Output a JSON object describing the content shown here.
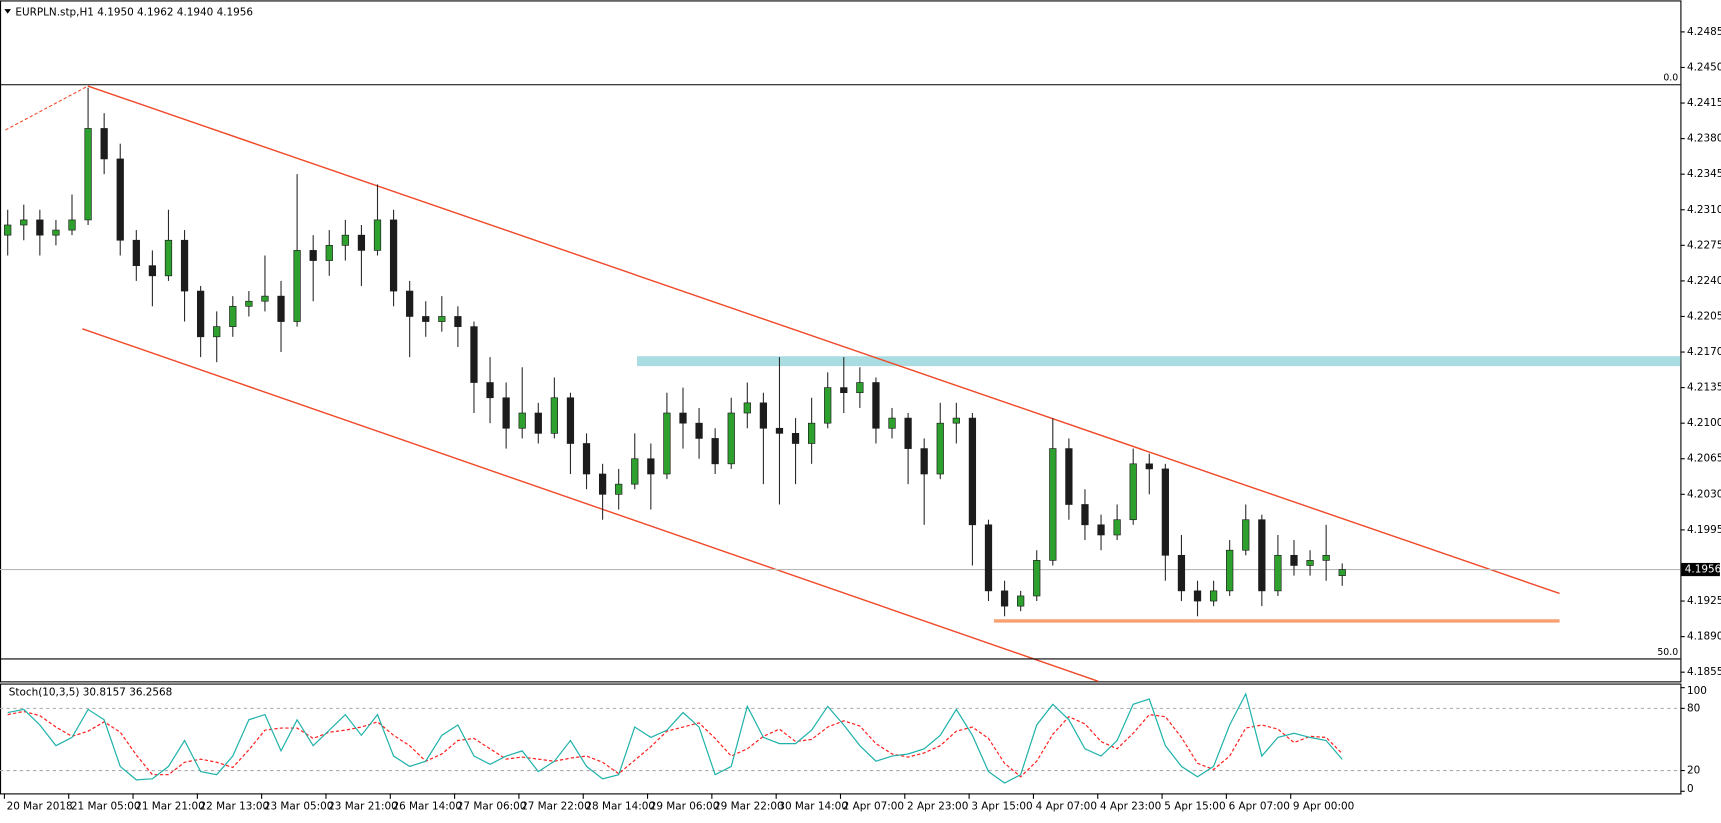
{
  "chart_data": [
    {
      "type": "candlestick",
      "title": "EURPLN.stp,H1  4.1950 4.1962 4.1940 4.1956",
      "categories": [
        "20 Mar 2018",
        null,
        null,
        null,
        "21 Mar 05:00",
        null,
        null,
        null,
        "21 Mar 21:00",
        null,
        null,
        null,
        "22 Mar 13:00",
        null,
        null,
        null,
        "23 Mar 05:00",
        null,
        null,
        null,
        "23 Mar 21:00",
        null,
        null,
        null,
        "26 Mar 14:00",
        null,
        null,
        null,
        "27 Mar 06:00",
        null,
        null,
        null,
        "27 Mar 22:00",
        null,
        null,
        null,
        "28 Mar 14:00",
        null,
        null,
        null,
        "29 Mar 06:00",
        null,
        null,
        null,
        "29 Mar 22:00",
        null,
        null,
        null,
        "30 Mar 14:00",
        null,
        null,
        null,
        "2 Apr 07:00",
        null,
        null,
        null,
        "2 Apr 23:00",
        null,
        null,
        null,
        "3 Apr 15:00",
        null,
        null,
        null,
        "4 Apr 07:00",
        null,
        null,
        null,
        "4 Apr 23:00",
        null,
        null,
        null,
        "5 Apr 15:00",
        null,
        null,
        null,
        "6 Apr 07:00",
        null,
        null,
        null,
        "9 Apr 00:00",
        null,
        null,
        null
      ],
      "open": [
        4.2285,
        4.2295,
        4.23,
        4.2285,
        4.229,
        4.23,
        4.239,
        4.236,
        4.228,
        4.2255,
        4.2245,
        4.228,
        4.223,
        4.2185,
        4.2195,
        4.2215,
        4.222,
        4.2225,
        4.22,
        4.227,
        4.226,
        4.2275,
        4.2285,
        4.227,
        4.23,
        4.223,
        4.2205,
        4.22,
        4.2205,
        4.2195,
        4.214,
        4.2125,
        4.2095,
        4.211,
        4.209,
        4.2125,
        4.208,
        4.205,
        4.203,
        4.204,
        4.2065,
        4.205,
        4.211,
        4.21,
        4.2085,
        4.206,
        4.211,
        4.212,
        4.2095,
        4.209,
        4.208,
        4.21,
        4.2135,
        4.213,
        4.214,
        4.2095,
        4.2105,
        4.2075,
        4.205,
        4.21,
        4.2105,
        4.2,
        4.1935,
        4.192,
        4.193,
        4.1965,
        4.2075,
        4.202,
        4.2,
        4.199,
        4.2005,
        4.206,
        4.2055,
        4.197,
        4.1935,
        4.1925,
        4.1935,
        4.1975,
        4.2005,
        4.1935,
        4.197,
        4.196,
        4.1965,
        4.195
      ],
      "high": [
        4.231,
        4.2315,
        4.231,
        4.23,
        4.2325,
        4.243,
        4.2405,
        4.2375,
        4.229,
        4.227,
        4.231,
        4.229,
        4.2235,
        4.221,
        4.2225,
        4.223,
        4.2265,
        4.224,
        4.2345,
        4.2285,
        4.229,
        4.23,
        4.2295,
        4.2335,
        4.231,
        4.224,
        4.222,
        4.2225,
        4.2215,
        4.22,
        4.2165,
        4.214,
        4.2155,
        4.212,
        4.2145,
        4.213,
        4.209,
        4.206,
        4.2055,
        4.209,
        4.208,
        4.213,
        4.2135,
        4.2115,
        4.2095,
        4.2125,
        4.214,
        4.213,
        4.2165,
        4.2105,
        4.2125,
        4.215,
        4.2165,
        4.2155,
        4.2145,
        4.2115,
        4.211,
        4.2085,
        4.212,
        4.212,
        4.211,
        4.2005,
        4.1945,
        4.1935,
        4.1975,
        4.2105,
        4.2085,
        4.2035,
        4.201,
        4.202,
        4.2075,
        4.207,
        4.206,
        4.199,
        4.1945,
        4.1945,
        4.1985,
        4.202,
        4.201,
        4.199,
        4.1985,
        4.1975,
        4.2,
        4.1962
      ],
      "low": [
        4.2265,
        4.228,
        4.2265,
        4.2275,
        4.2285,
        4.2295,
        4.2345,
        4.2265,
        4.224,
        4.2215,
        4.224,
        4.22,
        4.2165,
        4.216,
        4.2185,
        4.2205,
        4.221,
        4.217,
        4.2195,
        4.222,
        4.2245,
        4.226,
        4.2235,
        4.2265,
        4.2215,
        4.2165,
        4.2185,
        4.219,
        4.2175,
        4.211,
        4.21,
        4.2075,
        4.2085,
        4.208,
        4.2085,
        4.205,
        4.2035,
        4.2005,
        4.2015,
        4.2035,
        4.2015,
        4.2045,
        4.2075,
        4.2065,
        4.205,
        4.2055,
        4.2095,
        4.204,
        4.202,
        4.204,
        4.206,
        4.2095,
        4.211,
        4.2115,
        4.208,
        4.2085,
        4.204,
        4.2,
        4.2045,
        4.208,
        4.196,
        4.1925,
        4.191,
        4.1915,
        4.1925,
        4.196,
        4.2005,
        4.1985,
        4.1975,
        4.1985,
        4.2,
        4.203,
        4.1945,
        4.1925,
        4.191,
        4.192,
        4.193,
        4.197,
        4.192,
        4.193,
        4.195,
        4.195,
        4.1945,
        4.194
      ],
      "close": [
        4.2295,
        4.23,
        4.2285,
        4.229,
        4.23,
        4.239,
        4.236,
        4.228,
        4.2255,
        4.2245,
        4.228,
        4.223,
        4.2185,
        4.2195,
        4.2215,
        4.222,
        4.2225,
        4.22,
        4.227,
        4.226,
        4.2275,
        4.2285,
        4.227,
        4.23,
        4.223,
        4.2205,
        4.22,
        4.2205,
        4.2195,
        4.214,
        4.2125,
        4.2095,
        4.211,
        4.209,
        4.2125,
        4.208,
        4.205,
        4.203,
        4.204,
        4.2065,
        4.205,
        4.211,
        4.21,
        4.2085,
        4.206,
        4.211,
        4.212,
        4.2095,
        4.209,
        4.208,
        4.21,
        4.2135,
        4.213,
        4.214,
        4.2095,
        4.2105,
        4.2075,
        4.205,
        4.21,
        4.2105,
        4.2,
        4.1935,
        4.192,
        4.193,
        4.1965,
        4.2075,
        4.202,
        4.2,
        4.199,
        4.2005,
        4.206,
        4.2055,
        4.197,
        4.1935,
        4.1925,
        4.1935,
        4.1975,
        4.2005,
        4.1935,
        4.197,
        4.196,
        4.1965,
        4.197,
        4.1956
      ],
      "up_color": "#2ea02e",
      "down_color": "#1c1c1c",
      "wick_color": "#2a2a2a",
      "ylim": [
        4.1846,
        4.2516
      ],
      "yticks": [
        4.2485,
        {
          "value": 4.245,
          "label": "4.2450"
        },
        4.2415,
        {
          "value": 4.238,
          "label": "4.2380"
        },
        4.2345,
        {
          "value": 4.231,
          "label": "4.2310"
        },
        4.2275,
        {
          "value": 4.224,
          "label": "4.2240"
        },
        4.2205,
        {
          "value": 4.217,
          "label": "4.2170"
        },
        4.2135,
        {
          "value": 4.21,
          "label": "4.2100"
        },
        4.2065,
        {
          "value": 4.203,
          "label": "4.2030"
        },
        4.1995,
        4.1925,
        {
          "value": 4.189,
          "label": "4.1890"
        },
        4.1855
      ],
      "current_price": 4.1956,
      "fib_levels": [
        {
          "level": 0,
          "label": "0.0",
          "price": 4.2433
        },
        {
          "level": 50,
          "label": "50.0",
          "price": 4.1868
        }
      ]
    },
    {
      "type": "line",
      "title": "Stoch(10,3,5) 30.8157 36.2568",
      "series": [
        {
          "color": "#20b2aa",
          "dash": false,
          "values": [
            76,
            79,
            64,
            44,
            52,
            79,
            69,
            24,
            11,
            12,
            24,
            49,
            19,
            16,
            34,
            69,
            74,
            39,
            69,
            44,
            59,
            74,
            54,
            74,
            34,
            24,
            29,
            54,
            64,
            34,
            26,
            34,
            39,
            19,
            29,
            49,
            24,
            12,
            16,
            62,
            52,
            59,
            76,
            62,
            16,
            24,
            82,
            52,
            46,
            46,
            59,
            82,
            64,
            44,
            29,
            34,
            36,
            41,
            54,
            79,
            54,
            19,
            8,
            16,
            64,
            84,
            69,
            41,
            34,
            49,
            84,
            89,
            44,
            24,
            14,
            24,
            64,
            94,
            34,
            52,
            56,
            52,
            49,
            30.8157
          ]
        },
        {
          "color": "#ff2020",
          "dash": true,
          "values": [
            74,
            77,
            73,
            62,
            53,
            58,
            67,
            57,
            35,
            16,
            16,
            28,
            31,
            28,
            23,
            40,
            59,
            61,
            61,
            51,
            57,
            59,
            62,
            67,
            54,
            44,
            29,
            36,
            49,
            51,
            41,
            31,
            33,
            31,
            29,
            32,
            34,
            28,
            17,
            30,
            43,
            58,
            62,
            66,
            51,
            34,
            41,
            53,
            60,
            48,
            50,
            62,
            68,
            63,
            46,
            36,
            33,
            37,
            44,
            58,
            62,
            51,
            27,
            14,
            29,
            55,
            72,
            65,
            48,
            41,
            56,
            74,
            72,
            52,
            27,
            21,
            34,
            61,
            64,
            60,
            47,
            53,
            52,
            36.2568
          ]
        }
      ],
      "ylim": [
        -2,
        104
      ],
      "yticks": [
        100,
        80,
        20,
        0
      ],
      "levels": [
        80,
        20
      ]
    }
  ]
}
